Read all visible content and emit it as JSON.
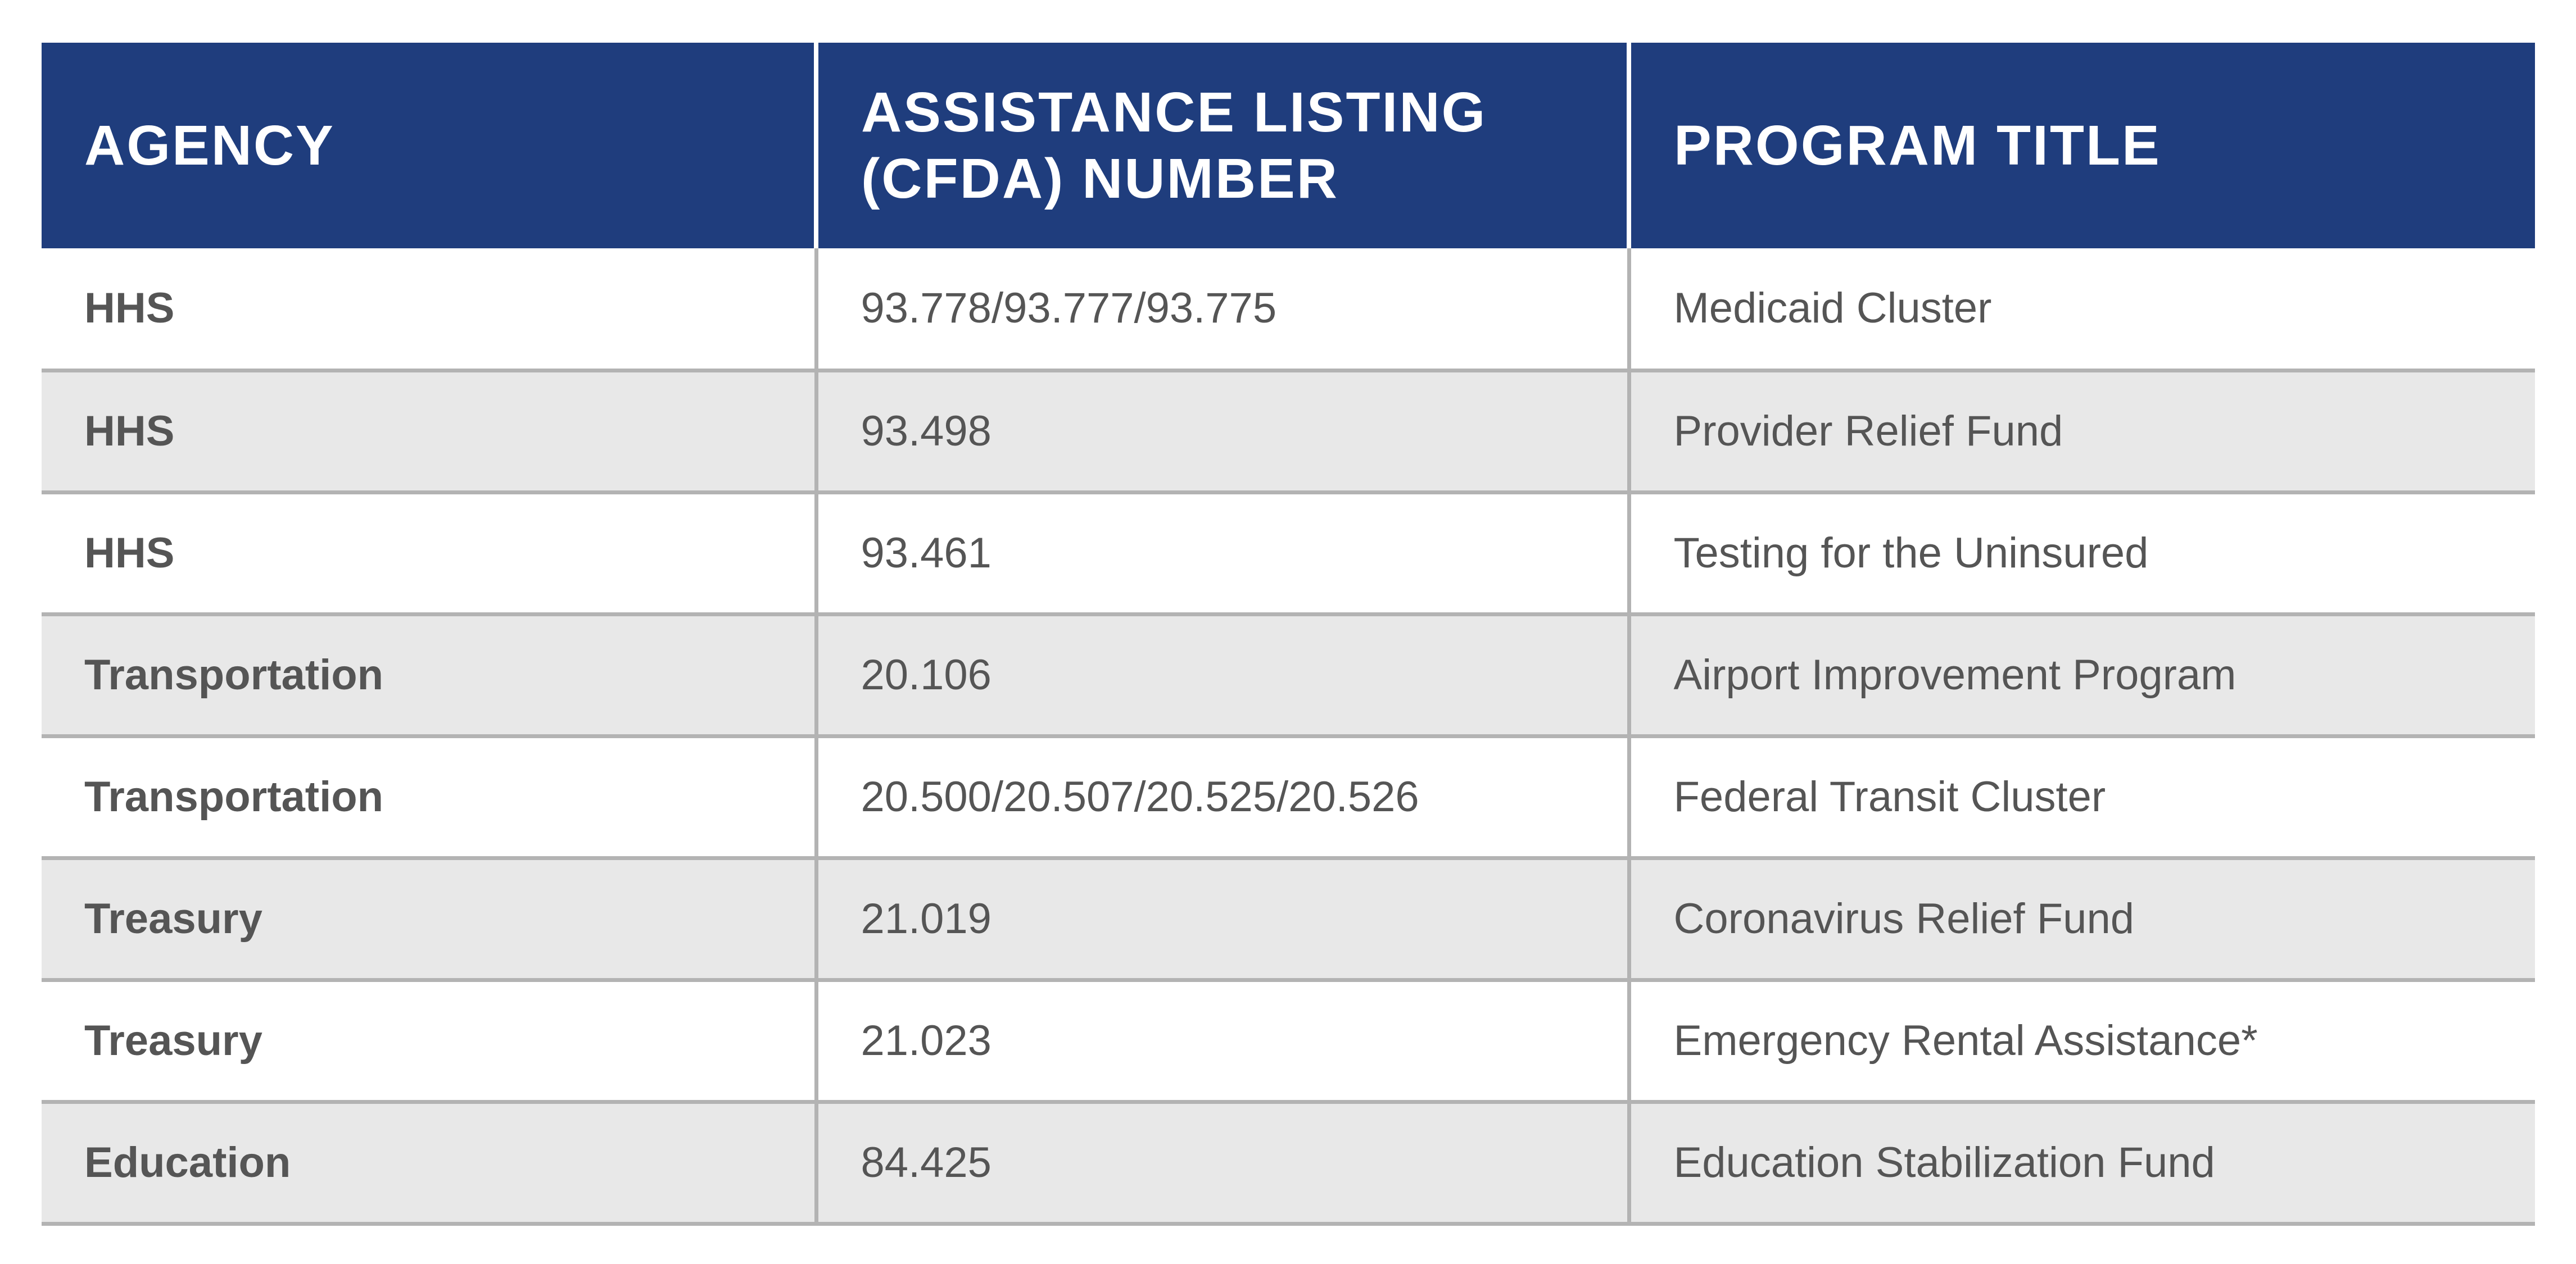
{
  "table": {
    "headers": {
      "agency": "AGENCY",
      "listing_line1": "ASSISTANCE LISTING",
      "listing_line2": "(CFDA) NUMBER",
      "program": "PROGRAM TITLE"
    },
    "rows": [
      {
        "agency": "HHS",
        "listing": "93.778/93.777/93.775",
        "program": "Medicaid Cluster"
      },
      {
        "agency": "HHS",
        "listing": "93.498",
        "program": "Provider Relief Fund"
      },
      {
        "agency": "HHS",
        "listing": "93.461",
        "program": "Testing for the Uninsured"
      },
      {
        "agency": "Transportation",
        "listing": "20.106",
        "program": "Airport Improvement Program"
      },
      {
        "agency": "Transportation",
        "listing": "20.500/20.507/20.525/20.526",
        "program": "Federal Transit Cluster"
      },
      {
        "agency": "Treasury",
        "listing": "21.019",
        "program": "Coronavirus Relief Fund"
      },
      {
        "agency": "Treasury",
        "listing": "21.023",
        "program": "Emergency Rental Assistance*"
      },
      {
        "agency": "Education",
        "listing": "84.425",
        "program": "Education Stabilization Fund"
      }
    ]
  },
  "colors": {
    "header_bg": "#1f3d7d",
    "header_text": "#ffffff",
    "stripe_bg": "#e8e8e8",
    "body_text": "#555555",
    "rule": "#b3b3b3"
  }
}
